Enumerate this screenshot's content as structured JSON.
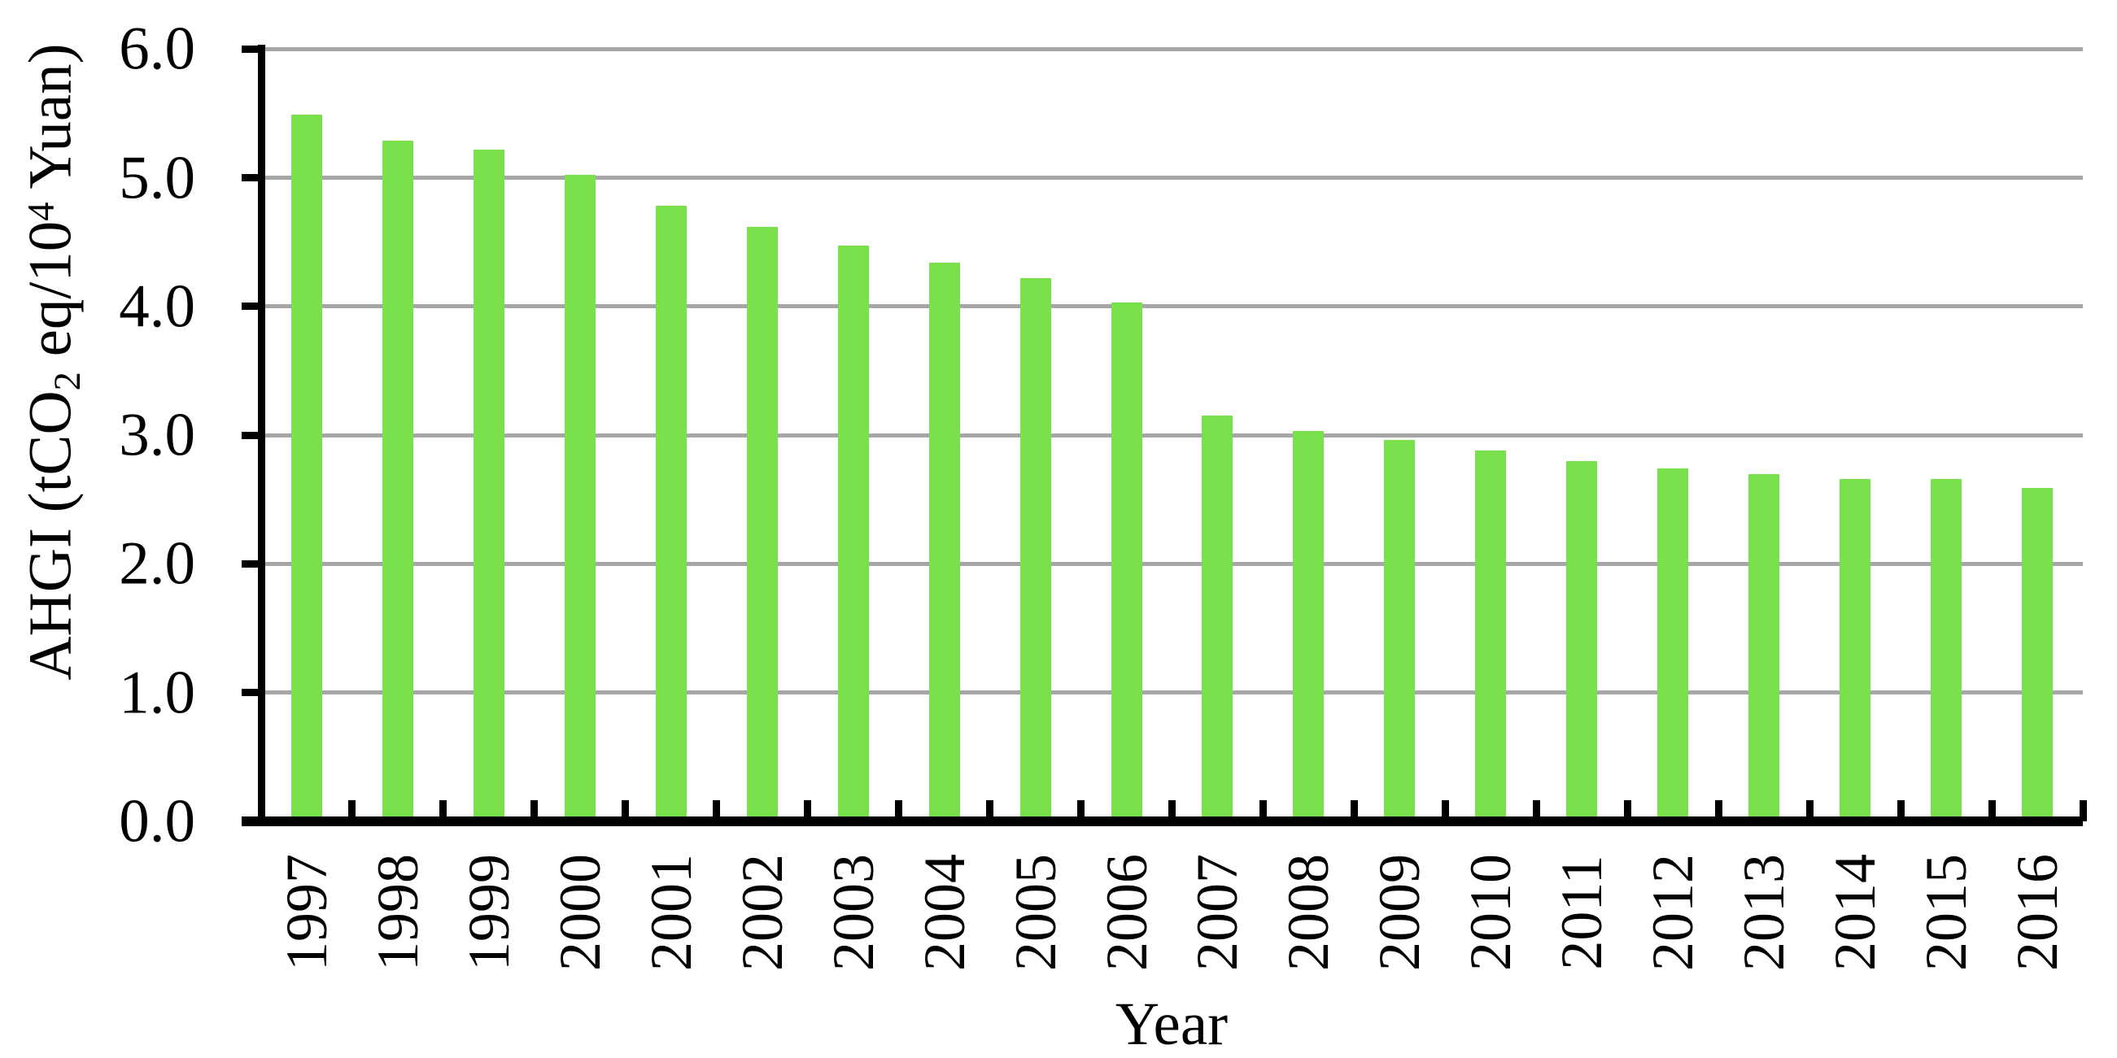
{
  "chart_data": {
    "type": "bar",
    "title": "",
    "xlabel": "Year",
    "ylabel": "AHGI (tCO2 eq/10^4 Yuan)",
    "ylabel_parts": {
      "pre": "AHGI (tCO",
      "sub": "2",
      "mid": " eq/10",
      "sup": "4",
      "post": " Yuan)"
    },
    "categories": [
      "1997",
      "1998",
      "1999",
      "2000",
      "2001",
      "2002",
      "2003",
      "2004",
      "2005",
      "2006",
      "2007",
      "2008",
      "2009",
      "2010",
      "2011",
      "2012",
      "2013",
      "2014",
      "2015",
      "2016"
    ],
    "values": [
      5.49,
      5.29,
      5.22,
      5.02,
      4.78,
      4.62,
      4.47,
      4.34,
      4.22,
      4.03,
      3.15,
      3.03,
      2.96,
      2.88,
      2.8,
      2.74,
      2.7,
      2.66,
      2.66,
      2.59
    ],
    "series_name": "AHGI",
    "ylim": [
      0,
      6
    ],
    "y_tick_labels": [
      "0.0",
      "1.0",
      "2.0",
      "3.0",
      "4.0",
      "5.0",
      "6.0"
    ],
    "grid": "horizontal-major",
    "legend": "none",
    "colors": {
      "bar": "#78e14b",
      "gridline": "#a6a6a6",
      "axis": "#000000",
      "text": "#000000",
      "background": "#ffffff"
    }
  }
}
